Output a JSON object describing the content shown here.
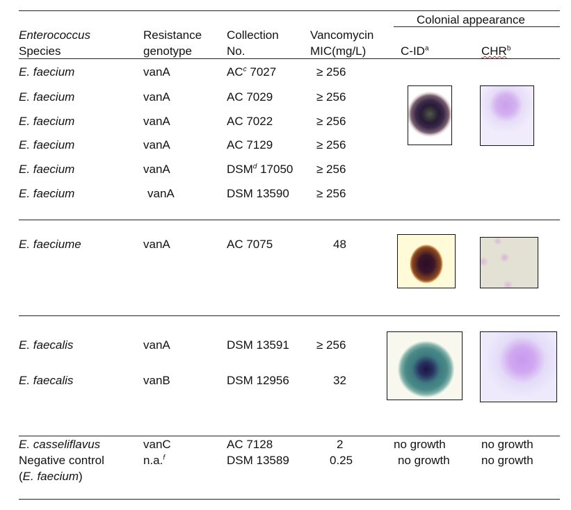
{
  "header": {
    "group_label": "Colonial appearance",
    "species": [
      "Enterococcus",
      "Species"
    ],
    "genotype": [
      "Resistance",
      "genotype"
    ],
    "collection": [
      "Collection",
      "No."
    ],
    "mic": [
      "Vancomycin",
      "MIC(mg/L)"
    ],
    "cid": "C-ID",
    "cid_sup": "a",
    "chr": "CHR",
    "chr_sup": "b"
  },
  "rows": [
    {
      "species": "E. faecium",
      "genotype": "vanA",
      "collection": "AC",
      "collection_sup": "c",
      "collection_num": "7027",
      "mic": "≥ 256"
    },
    {
      "species": "E. faecium",
      "genotype": "vanA",
      "collection": "AC 7029",
      "mic": "≥ 256"
    },
    {
      "species": "E. faecium",
      "genotype": "vanA",
      "collection": "AC 7022",
      "mic": "≥ 256"
    },
    {
      "species": "E. faecium",
      "genotype": "vanA",
      "collection": "AC 7129",
      "mic": "≥ 256"
    },
    {
      "species": "E. faecium",
      "genotype": "vanA",
      "collection": "DSM",
      "collection_sup": "d",
      "collection_num": "17050",
      "mic": "≥ 256"
    },
    {
      "species": "E. faecium",
      "genotype": "vanA",
      "collection": "DSM 13590",
      "mic": "≥ 256"
    },
    {
      "species": "E. faeciume",
      "genotype": "vanA",
      "collection": "AC 7075",
      "mic": "48"
    },
    {
      "species": "E. faecalis",
      "genotype": "vanA",
      "collection": "DSM 13591",
      "mic": "≥ 256"
    },
    {
      "species": "E. faecalis",
      "genotype": "vanB",
      "collection": "DSM 12956",
      "mic": "32"
    },
    {
      "species": "E. casseliflavus",
      "genotype": "vanC",
      "collection": "AC 7128",
      "mic": "2",
      "cid": "no growth",
      "chr": "no growth"
    },
    {
      "species": "Negative control",
      "species2": "(E. faecium)",
      "genotype": "n.a.",
      "genotype_sup": "f",
      "collection": "DSM 13589",
      "mic": "0.25",
      "cid": "no growth",
      "chr": "no growth"
    }
  ]
}
